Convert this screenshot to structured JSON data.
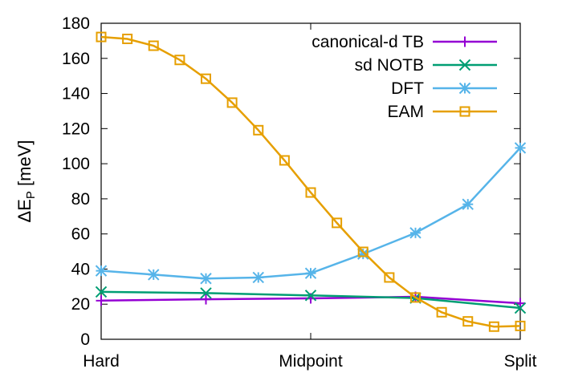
{
  "chart_data": {
    "type": "line",
    "xlim": [
      0,
      1
    ],
    "ylim": [
      0,
      180
    ],
    "x_tick_labels": [
      {
        "x": 0,
        "label": "Hard"
      },
      {
        "x": 0.5,
        "label": "Midpoint"
      },
      {
        "x": 1,
        "label": "Split"
      }
    ],
    "y_ticks": [
      0,
      20,
      40,
      60,
      80,
      100,
      120,
      140,
      160,
      180
    ],
    "ylabel_main": "ΔE",
    "ylabel_sub": "P",
    "ylabel_unit": " [meV]",
    "legend_position": "top-right",
    "series": [
      {
        "name": "canonical-d TB",
        "color": "#9400d3",
        "marker": "plus",
        "x": [
          0,
          0.25,
          0.5,
          0.75,
          1
        ],
        "y": [
          22,
          22.8,
          23.3,
          24.2,
          20.5
        ]
      },
      {
        "name": "sd NOTB",
        "color": "#009e73",
        "marker": "cross",
        "x": [
          0,
          0.25,
          0.5,
          0.75,
          1
        ],
        "y": [
          27,
          26.3,
          25,
          23.5,
          17.8
        ]
      },
      {
        "name": "DFT",
        "color": "#56b4e9",
        "marker": "star",
        "x": [
          0,
          0.125,
          0.25,
          0.375,
          0.5,
          0.625,
          0.75,
          0.875,
          1
        ],
        "y": [
          39,
          36.8,
          34.6,
          35.2,
          37.6,
          48.6,
          60.6,
          76.9,
          109
        ]
      },
      {
        "name": "EAM",
        "color": "#e69f00",
        "marker": "square",
        "x": [
          0,
          0.0625,
          0.125,
          0.1875,
          0.25,
          0.3125,
          0.375,
          0.4375,
          0.5,
          0.5625,
          0.625,
          0.6875,
          0.75,
          0.8125,
          0.875,
          0.9375,
          1
        ],
        "y": [
          172.2,
          171.1,
          167.2,
          159.1,
          148.4,
          134.8,
          119.1,
          101.9,
          83.6,
          66.3,
          49.8,
          35.2,
          23.8,
          15.4,
          10.2,
          7.2,
          7.6
        ]
      }
    ]
  }
}
